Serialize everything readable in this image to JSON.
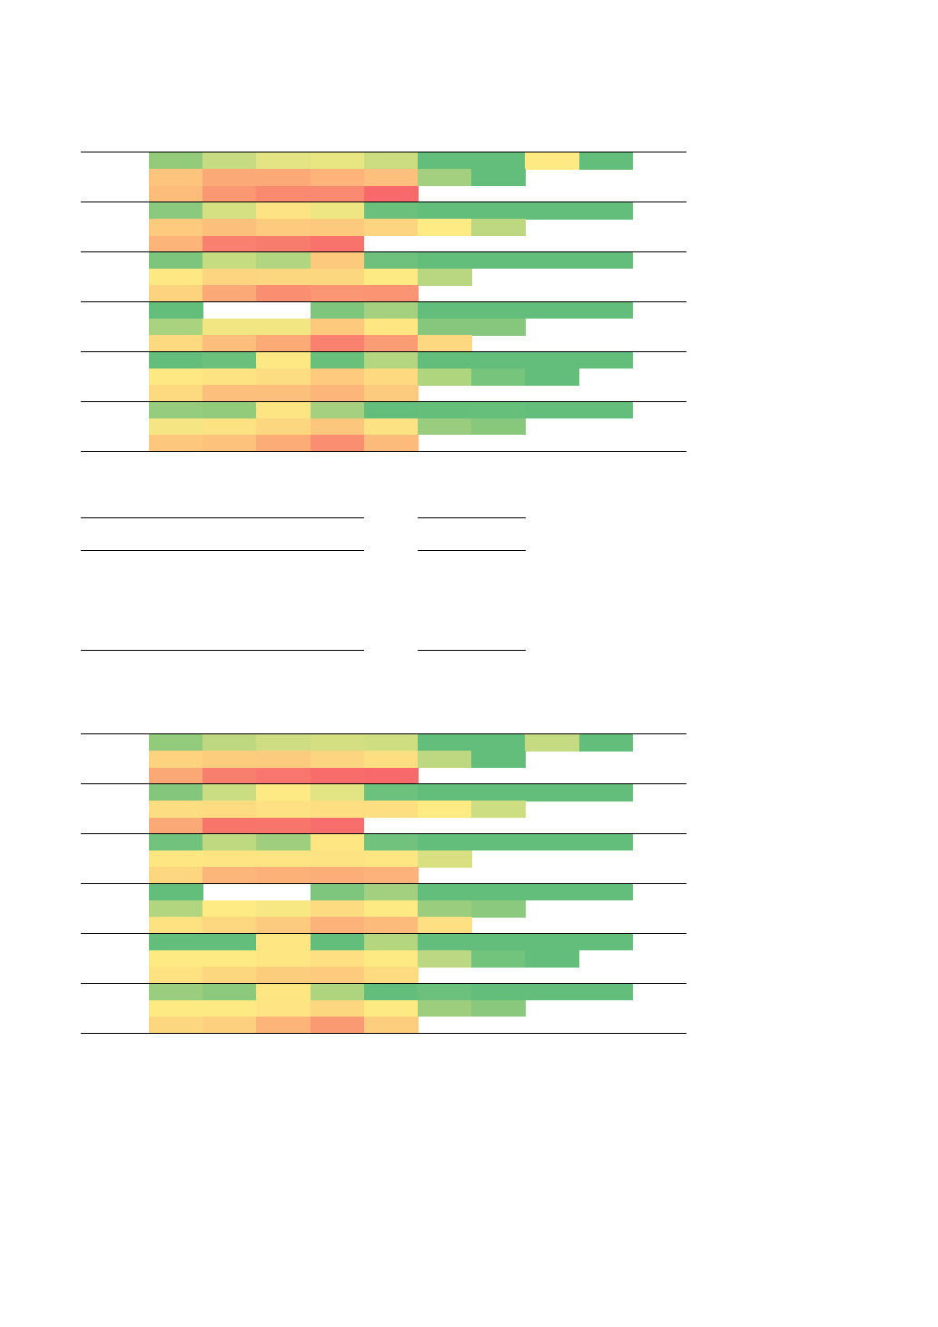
{
  "chart_data": [
    {
      "type": "heatmap",
      "name": "top-block",
      "title": "",
      "groups": [
        {
          "rows": [
            [
              "#93cb7b",
              "#c7dc82",
              "#e4e484",
              "#e8e583",
              "#cbdc81",
              "#63be7b",
              "#63be7b",
              "#fee983",
              "#63be7b"
            ],
            [
              "#fdc47d",
              "#fbaa77",
              "#fbaa77",
              "#fdb37a",
              "#fdc07c",
              "#a3d07f",
              "#63be7b",
              null,
              null
            ],
            [
              "#fcbd7b",
              "#fa9873",
              "#f98a70",
              "#f98970",
              "#f8696b",
              null,
              null,
              null,
              null
            ]
          ]
        },
        {
          "rows": [
            [
              "#8ac97e",
              "#d5e083",
              "#fde383",
              "#ede683",
              "#6bc17c",
              "#63be7b",
              "#63be7b",
              "#63be7b",
              "#63be7b"
            ],
            [
              "#fdca7e",
              "#fcc07c",
              "#fdcb7e",
              "#fdc97d",
              "#fdd580",
              "#feeb84",
              "#bdd881",
              null,
              null
            ],
            [
              "#fcb479",
              "#f9806e",
              "#f87c6d",
              "#f8736c",
              null,
              null,
              null,
              null,
              null
            ]
          ]
        },
        {
          "rows": [
            [
              "#7dc57c",
              "#c6dc81",
              "#b1d580",
              "#fdc97d",
              "#6dc17c",
              "#63be7b",
              "#63be7b",
              "#63be7b",
              "#63be7b"
            ],
            [
              "#fee883",
              "#fdd580",
              "#fdd680",
              "#fdd680",
              "#feea83",
              "#b8d780",
              null,
              null,
              null
            ],
            [
              "#fdd37f",
              "#fbaa77",
              "#f98e71",
              "#fa9673",
              "#fa9472",
              null,
              null,
              null,
              null
            ]
          ]
        },
        {
          "rows": [
            [
              "#63be7b",
              null,
              null,
              "#7ec67d",
              "#a4d17f",
              "#63be7b",
              "#63be7b",
              "#63be7b",
              "#63be7b"
            ],
            [
              "#a9d37f",
              "#f2e683",
              "#f2e683",
              "#fdc97d",
              "#fee783",
              "#86c77d",
              "#86c77d",
              null,
              null
            ],
            [
              "#fdd980",
              "#fdbe7c",
              "#fcab77",
              "#f8816f",
              "#fa9c74",
              "#fdd880",
              null,
              null,
              null
            ]
          ]
        },
        {
          "rows": [
            [
              "#63be7b",
              "#6bc17c",
              "#fde984",
              "#69c07b",
              "#b5d680",
              "#63be7b",
              "#63be7b",
              "#63be7b",
              "#63be7b"
            ],
            [
              "#fee883",
              "#fde382",
              "#fddd81",
              "#fdca7e",
              "#fdda80",
              "#b0d57f",
              "#77c47c",
              "#64be7b",
              null
            ],
            [
              "#fdda80",
              "#fcbf7c",
              "#fdbf7c",
              "#fdb67a",
              "#fdcb7e",
              null,
              null,
              null,
              null
            ]
          ]
        },
        {
          "rows": [
            [
              "#95cc7d",
              "#92cb7c",
              "#fde583",
              "#a5d07f",
              "#64be7b",
              "#65bf7b",
              "#67bf7c",
              "#63be7b",
              "#63be7b"
            ],
            [
              "#f5e683",
              "#fde282",
              "#fdd780",
              "#fdc67d",
              "#fde283",
              "#99cd7d",
              "#88c87d",
              null,
              null
            ],
            [
              "#fdc77d",
              "#fdc27c",
              "#fbac77",
              "#f98e71",
              "#fcbb7b",
              null,
              null,
              null,
              null
            ]
          ]
        }
      ]
    },
    {
      "type": "heatmap",
      "name": "bottom-block",
      "title": "",
      "groups": [
        {
          "rows": [
            [
              "#93cb7d",
              "#bdd880",
              "#cedd81",
              "#d4df82",
              "#d0de82",
              "#63be7b",
              "#63be7b",
              "#c5db81",
              "#63be7b"
            ],
            [
              "#fdd37f",
              "#fdcd7e",
              "#fdcb7e",
              "#fdd47f",
              "#fddf82",
              "#bdd881",
              "#63be7b",
              null,
              null
            ],
            [
              "#fba876",
              "#f87f6e",
              "#f8766d",
              "#f86d6c",
              "#f8696b",
              null,
              null,
              null,
              null
            ]
          ]
        },
        {
          "rows": [
            [
              "#84c67c",
              "#cbdd82",
              "#feea84",
              "#e2e383",
              "#6cc17c",
              "#63be7b",
              "#63be7b",
              "#63be7b",
              "#63be7b"
            ],
            [
              "#fddd81",
              "#fddb81",
              "#fee182",
              "#fddf82",
              "#fddf82",
              "#feeb84",
              "#cddd82",
              null,
              null
            ],
            [
              "#fbaa77",
              "#f8756c",
              "#f8756c",
              "#f86e6c",
              null,
              null,
              null,
              null,
              null
            ]
          ]
        },
        {
          "rows": [
            [
              "#70c27c",
              "#bed980",
              "#9ece7e",
              "#fee683",
              "#71c27c",
              "#63be7b",
              "#63be7b",
              "#63be7b",
              "#63be7b"
            ],
            [
              "#fee683",
              "#fee482",
              "#fee482",
              "#fde382",
              "#fee683",
              "#d9e082",
              null,
              null,
              null
            ],
            [
              "#fdd680",
              "#fdb67a",
              "#fcb179",
              "#fcae78",
              "#fcb279",
              null,
              null,
              null,
              null
            ]
          ]
        },
        {
          "rows": [
            [
              "#63be7b",
              null,
              null,
              "#7ec67d",
              "#a3d07f",
              "#63be7b",
              "#63be7b",
              "#63be7b",
              "#63be7b"
            ],
            [
              "#b2d57f",
              "#feeb84",
              "#f7e883",
              "#fddb81",
              "#feea83",
              "#9acd7e",
              "#8ac97e",
              null,
              null
            ],
            [
              "#fee282",
              "#fdd780",
              "#fdcb7e",
              "#fcb279",
              "#fcbb7b",
              "#fedf82",
              null,
              null,
              null
            ]
          ]
        },
        {
          "rows": [
            [
              "#63be7b",
              "#63be7b",
              "#fee683",
              "#63be7b",
              "#b4d67f",
              "#63be7b",
              "#63be7b",
              "#63be7b",
              "#63be7b"
            ],
            [
              "#feea83",
              "#feea83",
              "#fee683",
              "#fedf82",
              "#feea83",
              "#bcd882",
              "#72c37c",
              "#63be7b",
              null
            ],
            [
              "#fee282",
              "#fdd680",
              "#fdcd7e",
              "#fdcb7e",
              "#fddb81",
              null,
              null,
              null,
              null
            ]
          ]
        },
        {
          "rows": [
            [
              "#9bcd7e",
              "#8bc97d",
              "#fee683",
              "#aed47f",
              "#63be7b",
              "#6bc17c",
              "#63be7b",
              "#63be7b",
              "#63be7b"
            ],
            [
              "#feea83",
              "#feea83",
              "#fee482",
              "#fdd680",
              "#feea83",
              "#9dce7e",
              "#8ac97d",
              null,
              null
            ],
            [
              "#fdd680",
              "#fdd07f",
              "#fcb479",
              "#f99a73",
              "#fdcd7e",
              null,
              null,
              null,
              null
            ]
          ]
        }
      ]
    }
  ]
}
